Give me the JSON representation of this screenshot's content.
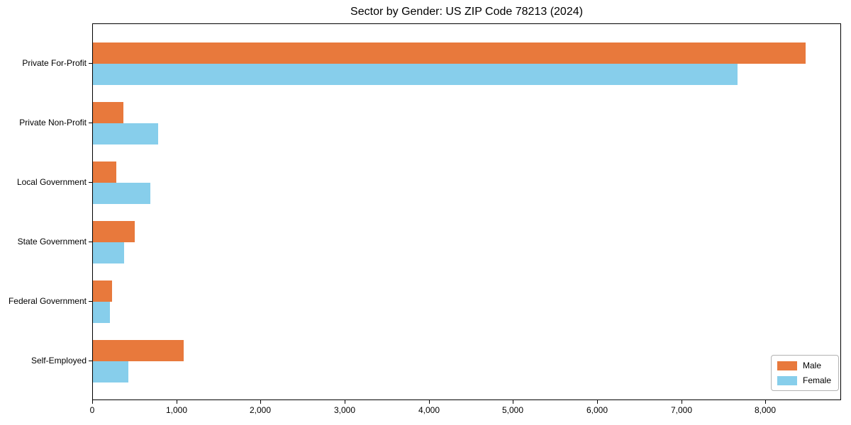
{
  "page": {
    "title": "Sector by Gender: US ZIP Code 78213 (2024)"
  },
  "chart_data": {
    "type": "bar",
    "orientation": "horizontal",
    "title": "Sector by Gender: US ZIP Code 78213 (2024)",
    "categories": [
      "Private For-Profit",
      "Private Non-Profit",
      "Local Government",
      "State Government",
      "Federal Government",
      "Self-Employed"
    ],
    "series": [
      {
        "name": "Male",
        "color": "#e8793c",
        "values": [
          8470,
          365,
          280,
          495,
          230,
          1080
        ]
      },
      {
        "name": "Female",
        "color": "#87ceeb",
        "values": [
          7665,
          775,
          685,
          375,
          200,
          425
        ]
      }
    ],
    "xlim": [
      0,
      8900
    ],
    "x_ticks": [
      {
        "value": 0,
        "label": "0"
      },
      {
        "value": 1000,
        "label": "1,000"
      },
      {
        "value": 2000,
        "label": "2,000"
      },
      {
        "value": 3000,
        "label": "3,000"
      },
      {
        "value": 4000,
        "label": "4,000"
      },
      {
        "value": 5000,
        "label": "5,000"
      },
      {
        "value": 6000,
        "label": "6,000"
      },
      {
        "value": 7000,
        "label": "7,000"
      },
      {
        "value": 8000,
        "label": "8,000"
      }
    ],
    "grid": false,
    "legend": {
      "position": "lower right",
      "entries": [
        "Male",
        "Female"
      ]
    }
  }
}
